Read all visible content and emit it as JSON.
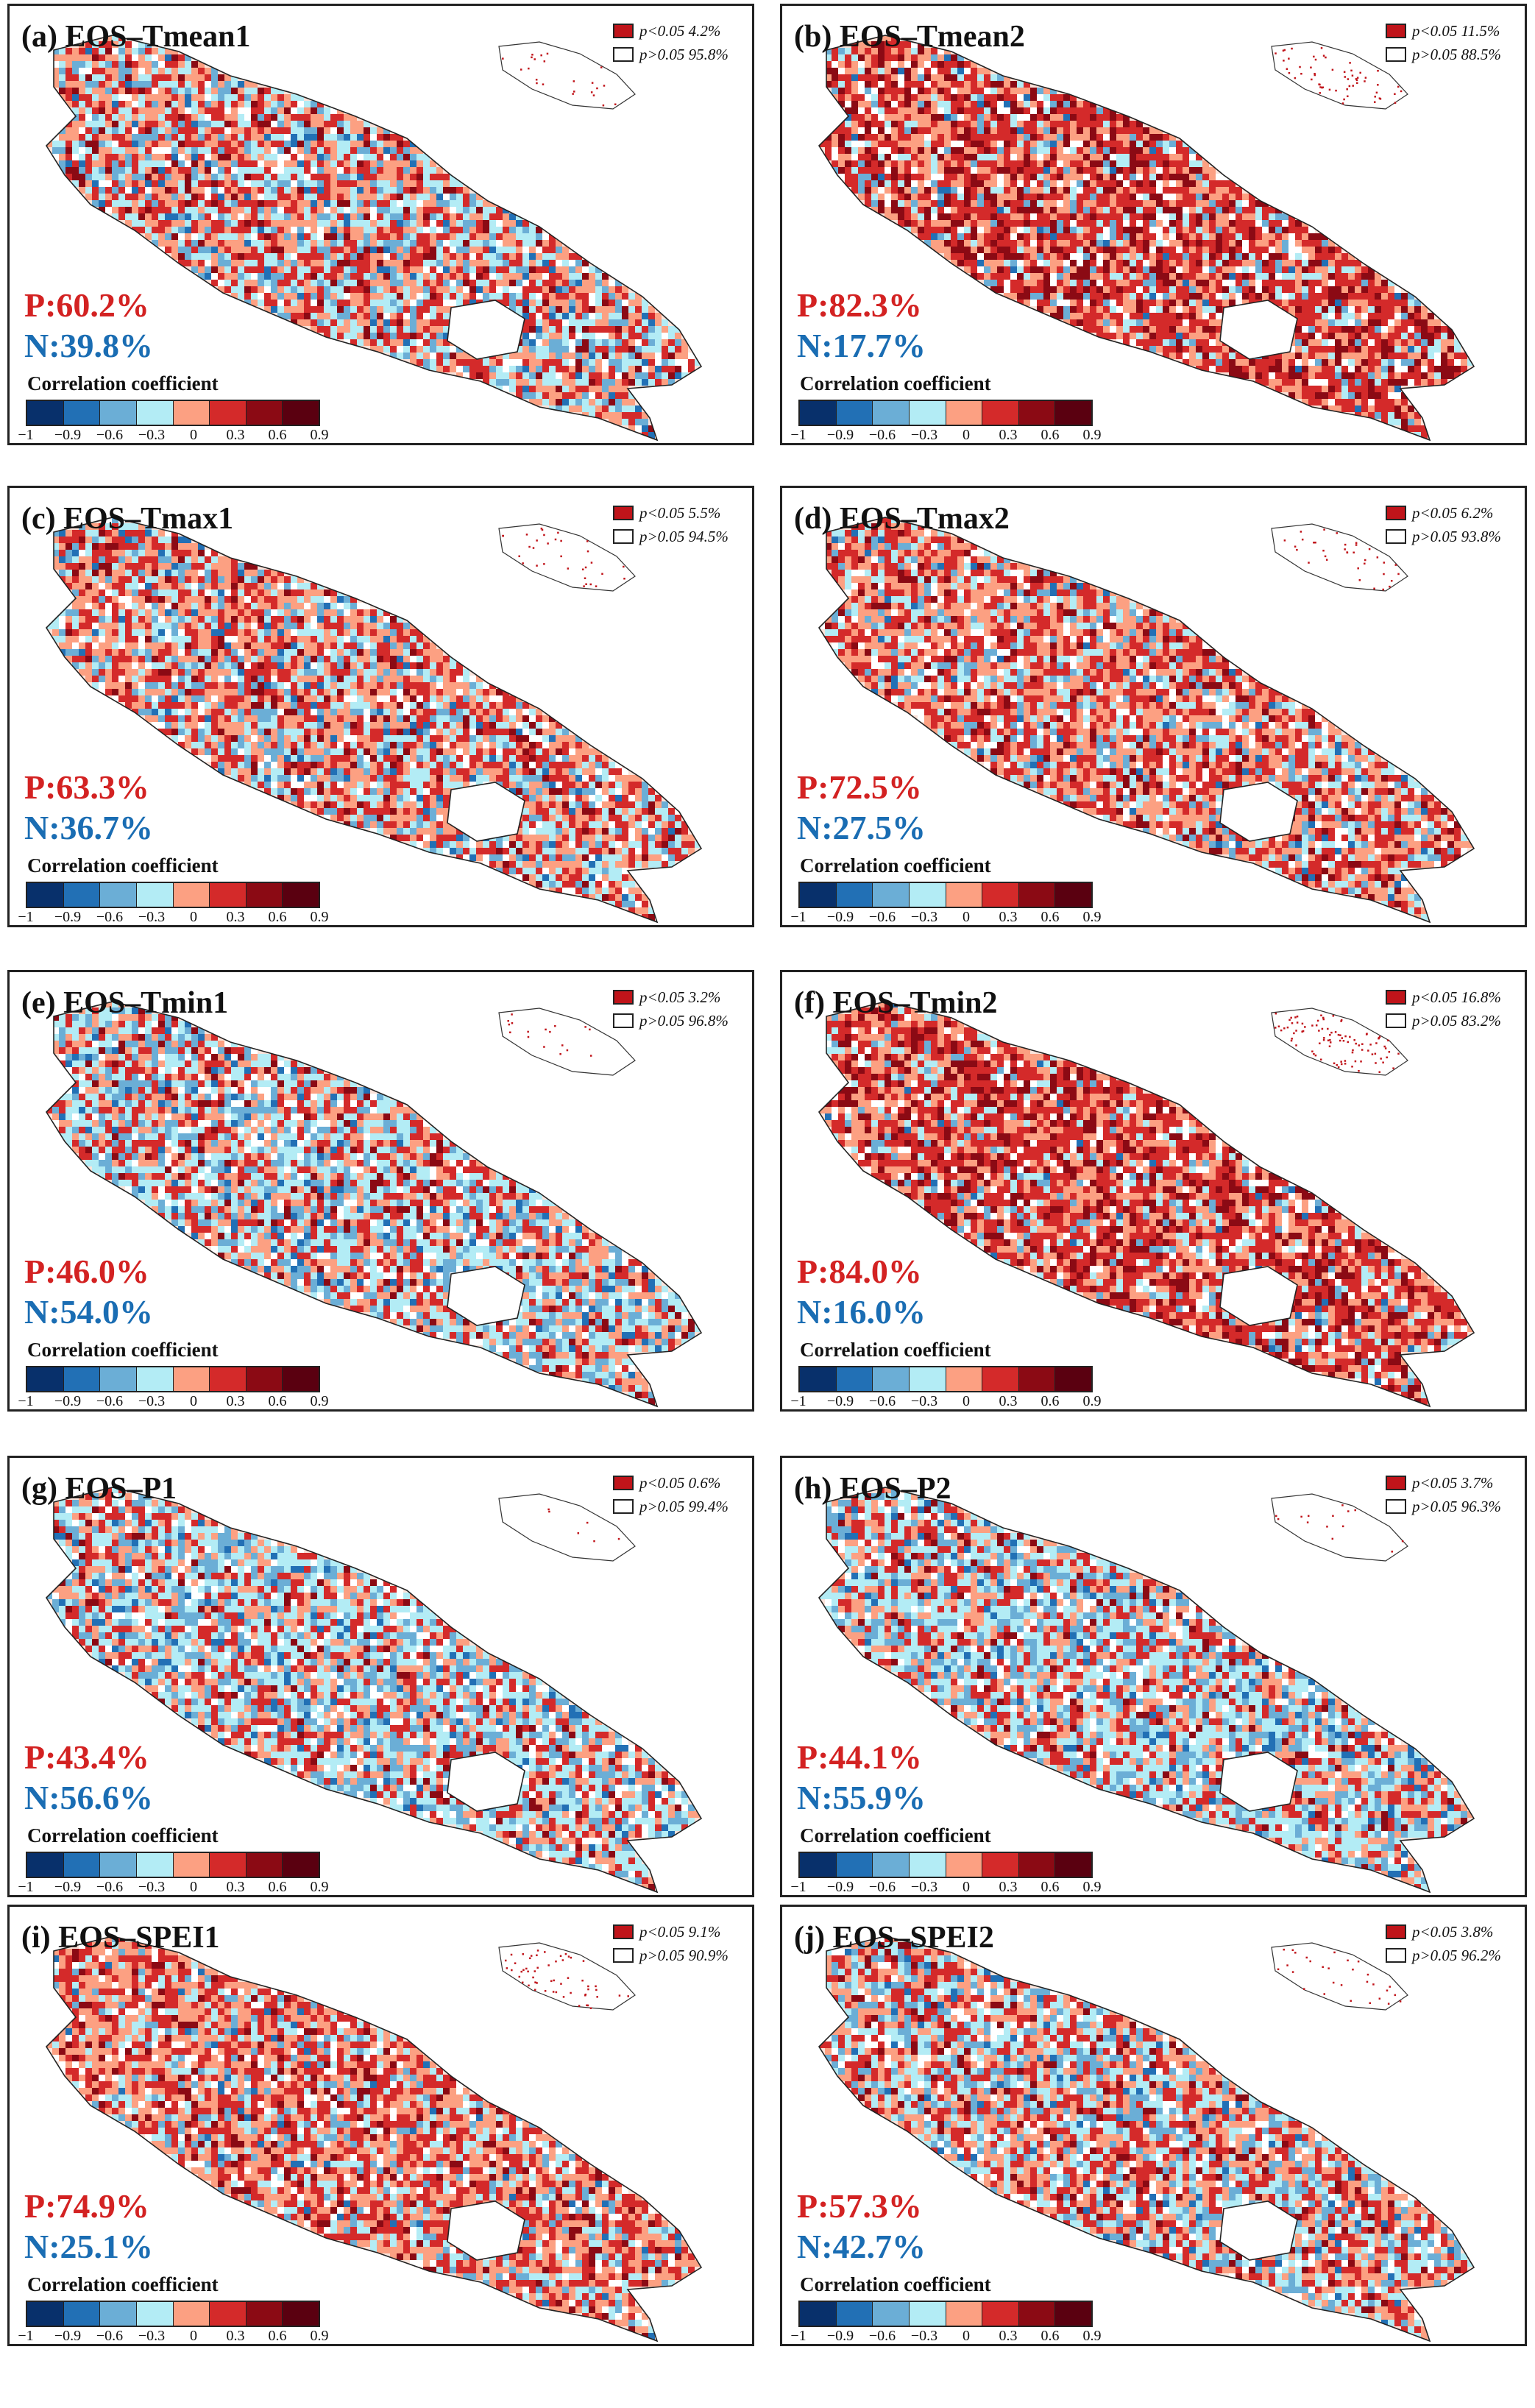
{
  "colorbar": {
    "title": "Correlation coefficient",
    "colors": [
      "#08306b",
      "#2270b5",
      "#6baed6",
      "#b3ecf5",
      "#fca082",
      "#d42a2a",
      "#8b0a14",
      "#5a0010"
    ],
    "ticks": [
      "−1",
      "−0.9",
      "−0.6",
      "−0.3",
      "0",
      "0.3",
      "0.6",
      "0.9"
    ]
  },
  "significance": {
    "sig_color": "#c0141a",
    "nonsig_color": "#ffffff"
  },
  "panels": [
    {
      "label": "(a) EOS–Tmean1",
      "p": "P:60.2%",
      "n": "N:39.8%",
      "sig_pct": "p<0.05 4.2%",
      "non_pct": "p>0.05 95.8%",
      "positive_share": 60.2
    },
    {
      "label": "(b) EOS–Tmean2",
      "p": "P:82.3%",
      "n": "N:17.7%",
      "sig_pct": "p<0.05 11.5%",
      "non_pct": "p>0.05 88.5%",
      "positive_share": 82.3
    },
    {
      "label": "(c) EOS–Tmax1",
      "p": "P:63.3%",
      "n": "N:36.7%",
      "sig_pct": "p<0.05 5.5%",
      "non_pct": "p>0.05 94.5%",
      "positive_share": 63.3
    },
    {
      "label": "(d) EOS–Tmax2",
      "p": "P:72.5%",
      "n": "N:27.5%",
      "sig_pct": "p<0.05 6.2%",
      "non_pct": "p>0.05 93.8%",
      "positive_share": 72.5
    },
    {
      "label": "(e) EOS–Tmin1",
      "p": "P:46.0%",
      "n": "N:54.0%",
      "sig_pct": "p<0.05 3.2%",
      "non_pct": "p>0.05 96.8%",
      "positive_share": 46.0
    },
    {
      "label": "(f) EOS–Tmin2",
      "p": "P:84.0%",
      "n": "N:16.0%",
      "sig_pct": "p<0.05 16.8%",
      "non_pct": "p>0.05 83.2%",
      "positive_share": 84.0
    },
    {
      "label": "(g) EOS–P1",
      "p": "P:43.4%",
      "n": "N:56.6%",
      "sig_pct": "p<0.05 0.6%",
      "non_pct": "p>0.05 99.4%",
      "positive_share": 43.4
    },
    {
      "label": "(h) EOS–P2",
      "p": "P:44.1%",
      "n": "N:55.9%",
      "sig_pct": "p<0.05 3.7%",
      "non_pct": "p>0.05 96.3%",
      "positive_share": 44.1
    },
    {
      "label": "(i) EOS–SPEI1",
      "p": "P:74.9%",
      "n": "N:25.1%",
      "sig_pct": "p<0.05 9.1%",
      "non_pct": "p>0.05 90.9%",
      "positive_share": 74.9
    },
    {
      "label": "(j) EOS–SPEI2",
      "p": "P:57.3%",
      "n": "N:42.7%",
      "sig_pct": "p<0.05 3.8%",
      "non_pct": "p>0.05 96.2%",
      "positive_share": 57.3
    }
  ]
}
